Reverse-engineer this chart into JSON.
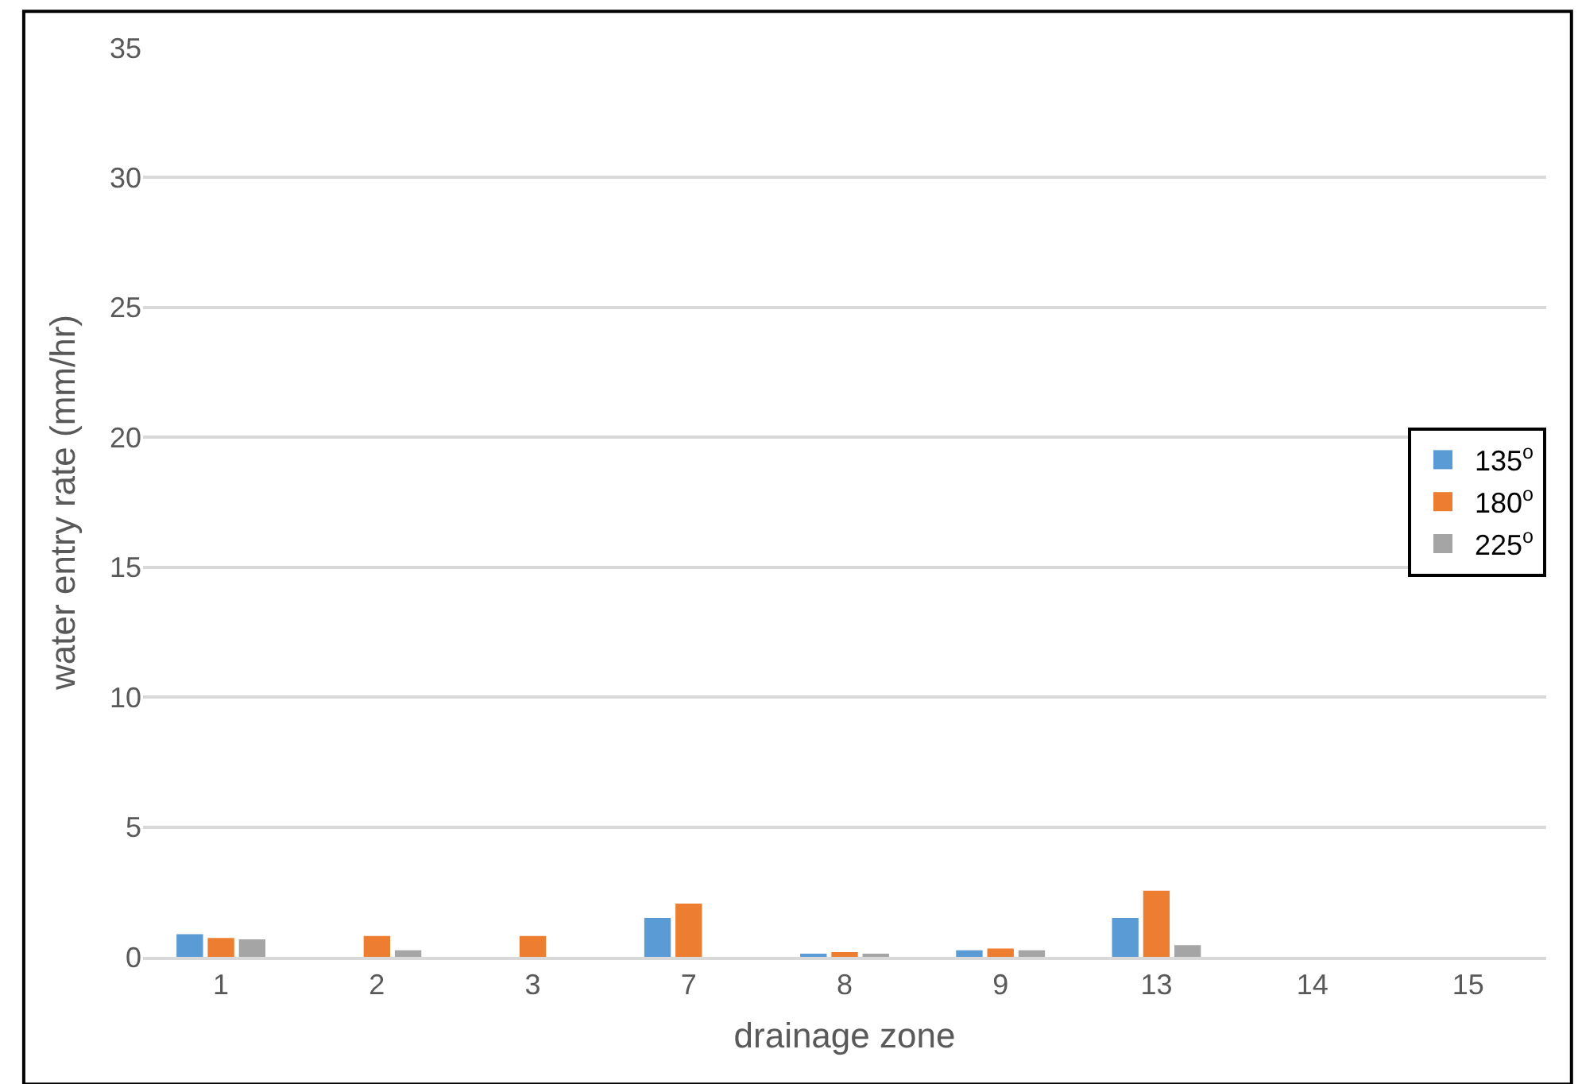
{
  "chart_data": {
    "type": "bar",
    "xlabel": "drainage zone",
    "ylabel": "water entry rate (mm/hr)",
    "categories": [
      "1",
      "2",
      "3",
      "7",
      "8",
      "9",
      "13",
      "14",
      "15"
    ],
    "series": [
      {
        "name": "135$^{o}$",
        "color": "#5b9bd5",
        "values": [
          0.87,
          null,
          null,
          1.5,
          0.1,
          0.25,
          1.5,
          null,
          null
        ]
      },
      {
        "name": "180$^{o}$",
        "color": "#ed7d31",
        "values": [
          0.73,
          0.8,
          0.8,
          2.05,
          0.18,
          0.32,
          2.55,
          null,
          null
        ]
      },
      {
        "name": "225$^{o}$",
        "color": "#a5a5a5",
        "values": [
          0.67,
          0.25,
          null,
          null,
          0.1,
          0.25,
          0.45,
          null,
          null
        ]
      }
    ],
    "ylim": [
      0,
      35
    ],
    "yticks": [
      0,
      5,
      10,
      15,
      20,
      25,
      30,
      35
    ],
    "grid": "y",
    "legend": "right"
  }
}
